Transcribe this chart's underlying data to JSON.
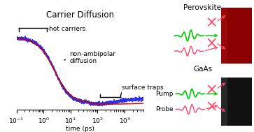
{
  "title": "Carrier Diffusion",
  "xlabel": "time (ps)",
  "blue_color": "#2222ee",
  "red_color": "#cc0000",
  "perovskite_color": "#8B0000",
  "gaas_color": "#111111",
  "green_color": "#00cc00",
  "pink_color": "#ff4466",
  "perovskite_label": "Perovskite",
  "gaas_label": "GaAs",
  "pump_label": "Pump",
  "probe_label": "Probe",
  "hot_label": "hot carriers",
  "nonambipolar_label": "non-ambipolar\ndiffusion",
  "surfacetraps_label": "surface traps"
}
